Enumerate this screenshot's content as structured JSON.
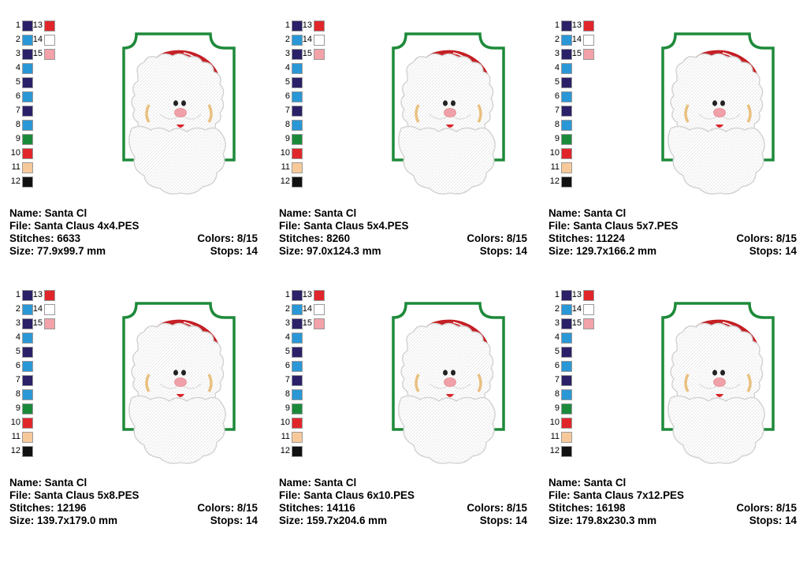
{
  "palette": {
    "1": "#2a2168",
    "2": "#2a97d6",
    "3": "#2a2168",
    "4": "#2a97d6",
    "5": "#2a2168",
    "6": "#2a97d6",
    "7": "#2a2168",
    "8": "#2a97d6",
    "9": "#1a8a3a",
    "10": "#e0262a",
    "11": "#f7c99a",
    "12": "#111111",
    "13": "#e0262a",
    "14": "#ffffff",
    "15": "#f2a2a8"
  },
  "designs": [
    {
      "name_label": "Name: Santa Cl",
      "file_label": "File: Santa Claus 4x4.PES",
      "stitches_label": "Stitches: 6633",
      "colors_label": "Colors: 8/15",
      "size_label": "Size: 77.9x99.7 mm",
      "stops_label": "Stops: 14"
    },
    {
      "name_label": "Name: Santa Cl",
      "file_label": "File: Santa Claus 5x4.PES",
      "stitches_label": "Stitches: 8260",
      "colors_label": "Colors: 8/15",
      "size_label": "Size: 97.0x124.3 mm",
      "stops_label": "Stops: 14"
    },
    {
      "name_label": "Name: Santa Cl",
      "file_label": "File: Santa Claus 5x7.PES",
      "stitches_label": "Stitches: 11224",
      "colors_label": "Colors: 8/15",
      "size_label": "Size: 129.7x166.2 mm",
      "stops_label": "Stops: 14"
    },
    {
      "name_label": "Name: Santa Cl",
      "file_label": "File: Santa Claus 5x8.PES",
      "stitches_label": "Stitches: 12196",
      "colors_label": "Colors: 8/15",
      "size_label": "Size: 139.7x179.0 mm",
      "stops_label": "Stops: 14"
    },
    {
      "name_label": "Name: Santa Cl",
      "file_label": "File: Santa Claus 6x10.PES",
      "stitches_label": "Stitches: 14116",
      "colors_label": "Colors: 8/15",
      "size_label": "Size: 159.7x204.6 mm",
      "stops_label": "Stops: 14"
    },
    {
      "name_label": "Name: Santa Cl",
      "file_label": "File: Santa Claus 7x12.PES",
      "stitches_label": "Stitches: 16198",
      "colors_label": "Colors: 8/15",
      "size_label": "Size: 179.8x230.3 mm",
      "stops_label": "Stops: 14"
    }
  ]
}
